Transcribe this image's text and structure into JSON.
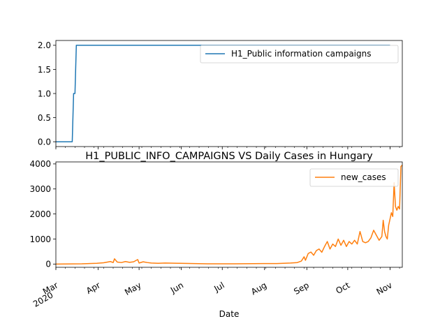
{
  "chart_data": [
    {
      "type": "line",
      "title": "",
      "xlabel": "",
      "ylabel": "",
      "ylim": [
        -0.1,
        2.1
      ],
      "yticks": [
        "0.0",
        "0.5",
        "1.0",
        "1.5",
        "2.0"
      ],
      "ytick_values": [
        0.0,
        0.5,
        1.0,
        1.5,
        2.0
      ],
      "legend_position": "upper-right",
      "color": "#1f77b4",
      "series": [
        {
          "name": "H1_Public information campaigns",
          "points": [
            [
              "2020-03-01",
              0
            ],
            [
              "2020-03-13",
              0
            ],
            [
              "2020-03-14",
              1
            ],
            [
              "2020-03-15",
              1
            ],
            [
              "2020-03-16",
              2
            ],
            [
              "2020-11-01",
              2
            ]
          ]
        }
      ]
    },
    {
      "type": "line",
      "title": "H1_PUBLIC_INFO_CAMPAIGNS VS Daily Cases in Hungary",
      "xlabel": "Date",
      "ylabel": "",
      "ylim": [
        -130,
        4080
      ],
      "yticks": [
        "0",
        "1000",
        "2000",
        "3000",
        "4000"
      ],
      "ytick_values": [
        0,
        1000,
        2000,
        3000,
        4000
      ],
      "legend_position": "upper-right",
      "color": "#ff7f0e",
      "xticks": [
        "Mar\n2020",
        "Apr",
        "May",
        "Jun",
        "Jul",
        "Aug",
        "Sep",
        "Oct",
        "Nov"
      ],
      "series": [
        {
          "name": "new_cases",
          "points": [
            [
              "2020-03-01",
              0
            ],
            [
              "2020-03-20",
              10
            ],
            [
              "2020-03-31",
              30
            ],
            [
              "2020-04-05",
              50
            ],
            [
              "2020-04-10",
              100
            ],
            [
              "2020-04-12",
              60
            ],
            [
              "2020-04-13",
              210
            ],
            [
              "2020-04-15",
              80
            ],
            [
              "2020-04-18",
              60
            ],
            [
              "2020-04-21",
              100
            ],
            [
              "2020-04-24",
              70
            ],
            [
              "2020-04-27",
              90
            ],
            [
              "2020-04-30",
              180
            ],
            [
              "2020-05-01",
              40
            ],
            [
              "2020-05-04",
              90
            ],
            [
              "2020-05-07",
              60
            ],
            [
              "2020-05-10",
              40
            ],
            [
              "2020-05-15",
              30
            ],
            [
              "2020-05-20",
              40
            ],
            [
              "2020-05-31",
              30
            ],
            [
              "2020-06-10",
              20
            ],
            [
              "2020-06-20",
              10
            ],
            [
              "2020-07-10",
              10
            ],
            [
              "2020-07-31",
              20
            ],
            [
              "2020-08-10",
              20
            ],
            [
              "2020-08-20",
              40
            ],
            [
              "2020-08-25",
              60
            ],
            [
              "2020-08-28",
              120
            ],
            [
              "2020-08-30",
              290
            ],
            [
              "2020-08-31",
              150
            ],
            [
              "2020-09-02",
              420
            ],
            [
              "2020-09-04",
              480
            ],
            [
              "2020-09-06",
              350
            ],
            [
              "2020-09-08",
              540
            ],
            [
              "2020-09-10",
              600
            ],
            [
              "2020-09-12",
              470
            ],
            [
              "2020-09-14",
              700
            ],
            [
              "2020-09-16",
              900
            ],
            [
              "2020-09-18",
              600
            ],
            [
              "2020-09-20",
              800
            ],
            [
              "2020-09-22",
              700
            ],
            [
              "2020-09-24",
              1000
            ],
            [
              "2020-09-26",
              750
            ],
            [
              "2020-09-28",
              950
            ],
            [
              "2020-09-30",
              700
            ],
            [
              "2020-10-02",
              900
            ],
            [
              "2020-10-04",
              800
            ],
            [
              "2020-10-06",
              950
            ],
            [
              "2020-10-08",
              800
            ],
            [
              "2020-10-10",
              1300
            ],
            [
              "2020-10-12",
              900
            ],
            [
              "2020-10-14",
              850
            ],
            [
              "2020-10-16",
              900
            ],
            [
              "2020-10-18",
              1050
            ],
            [
              "2020-10-20",
              1350
            ],
            [
              "2020-10-22",
              1150
            ],
            [
              "2020-10-24",
              950
            ],
            [
              "2020-10-26",
              1100
            ],
            [
              "2020-10-27",
              1750
            ],
            [
              "2020-10-28",
              1300
            ],
            [
              "2020-10-29",
              1100
            ],
            [
              "2020-10-30",
              1000
            ],
            [
              "2020-10-31",
              1550
            ],
            [
              "2020-11-02",
              2050
            ],
            [
              "2020-11-03",
              1900
            ],
            [
              "2020-11-04",
              3250
            ],
            [
              "2020-11-05",
              2300
            ],
            [
              "2020-11-06",
              2150
            ],
            [
              "2020-11-07",
              2300
            ],
            [
              "2020-11-08",
              2200
            ],
            [
              "2020-11-09",
              3900
            ],
            [
              "2020-11-10",
              3950
            ]
          ]
        }
      ]
    }
  ],
  "x_axis": {
    "range": [
      "2020-03-01",
      "2020-11-10"
    ],
    "major_ticks": [
      {
        "date": "2020-03-01",
        "label": "Mar",
        "sublabel": "2020"
      },
      {
        "date": "2020-04-01",
        "label": "Apr"
      },
      {
        "date": "2020-05-01",
        "label": "May"
      },
      {
        "date": "2020-06-01",
        "label": "Jun"
      },
      {
        "date": "2020-07-01",
        "label": "Jul"
      },
      {
        "date": "2020-08-01",
        "label": "Aug"
      },
      {
        "date": "2020-09-01",
        "label": "Sep"
      },
      {
        "date": "2020-10-01",
        "label": "Oct"
      },
      {
        "date": "2020-11-01",
        "label": "Nov"
      }
    ],
    "minor_tick_interval_days": 7
  }
}
